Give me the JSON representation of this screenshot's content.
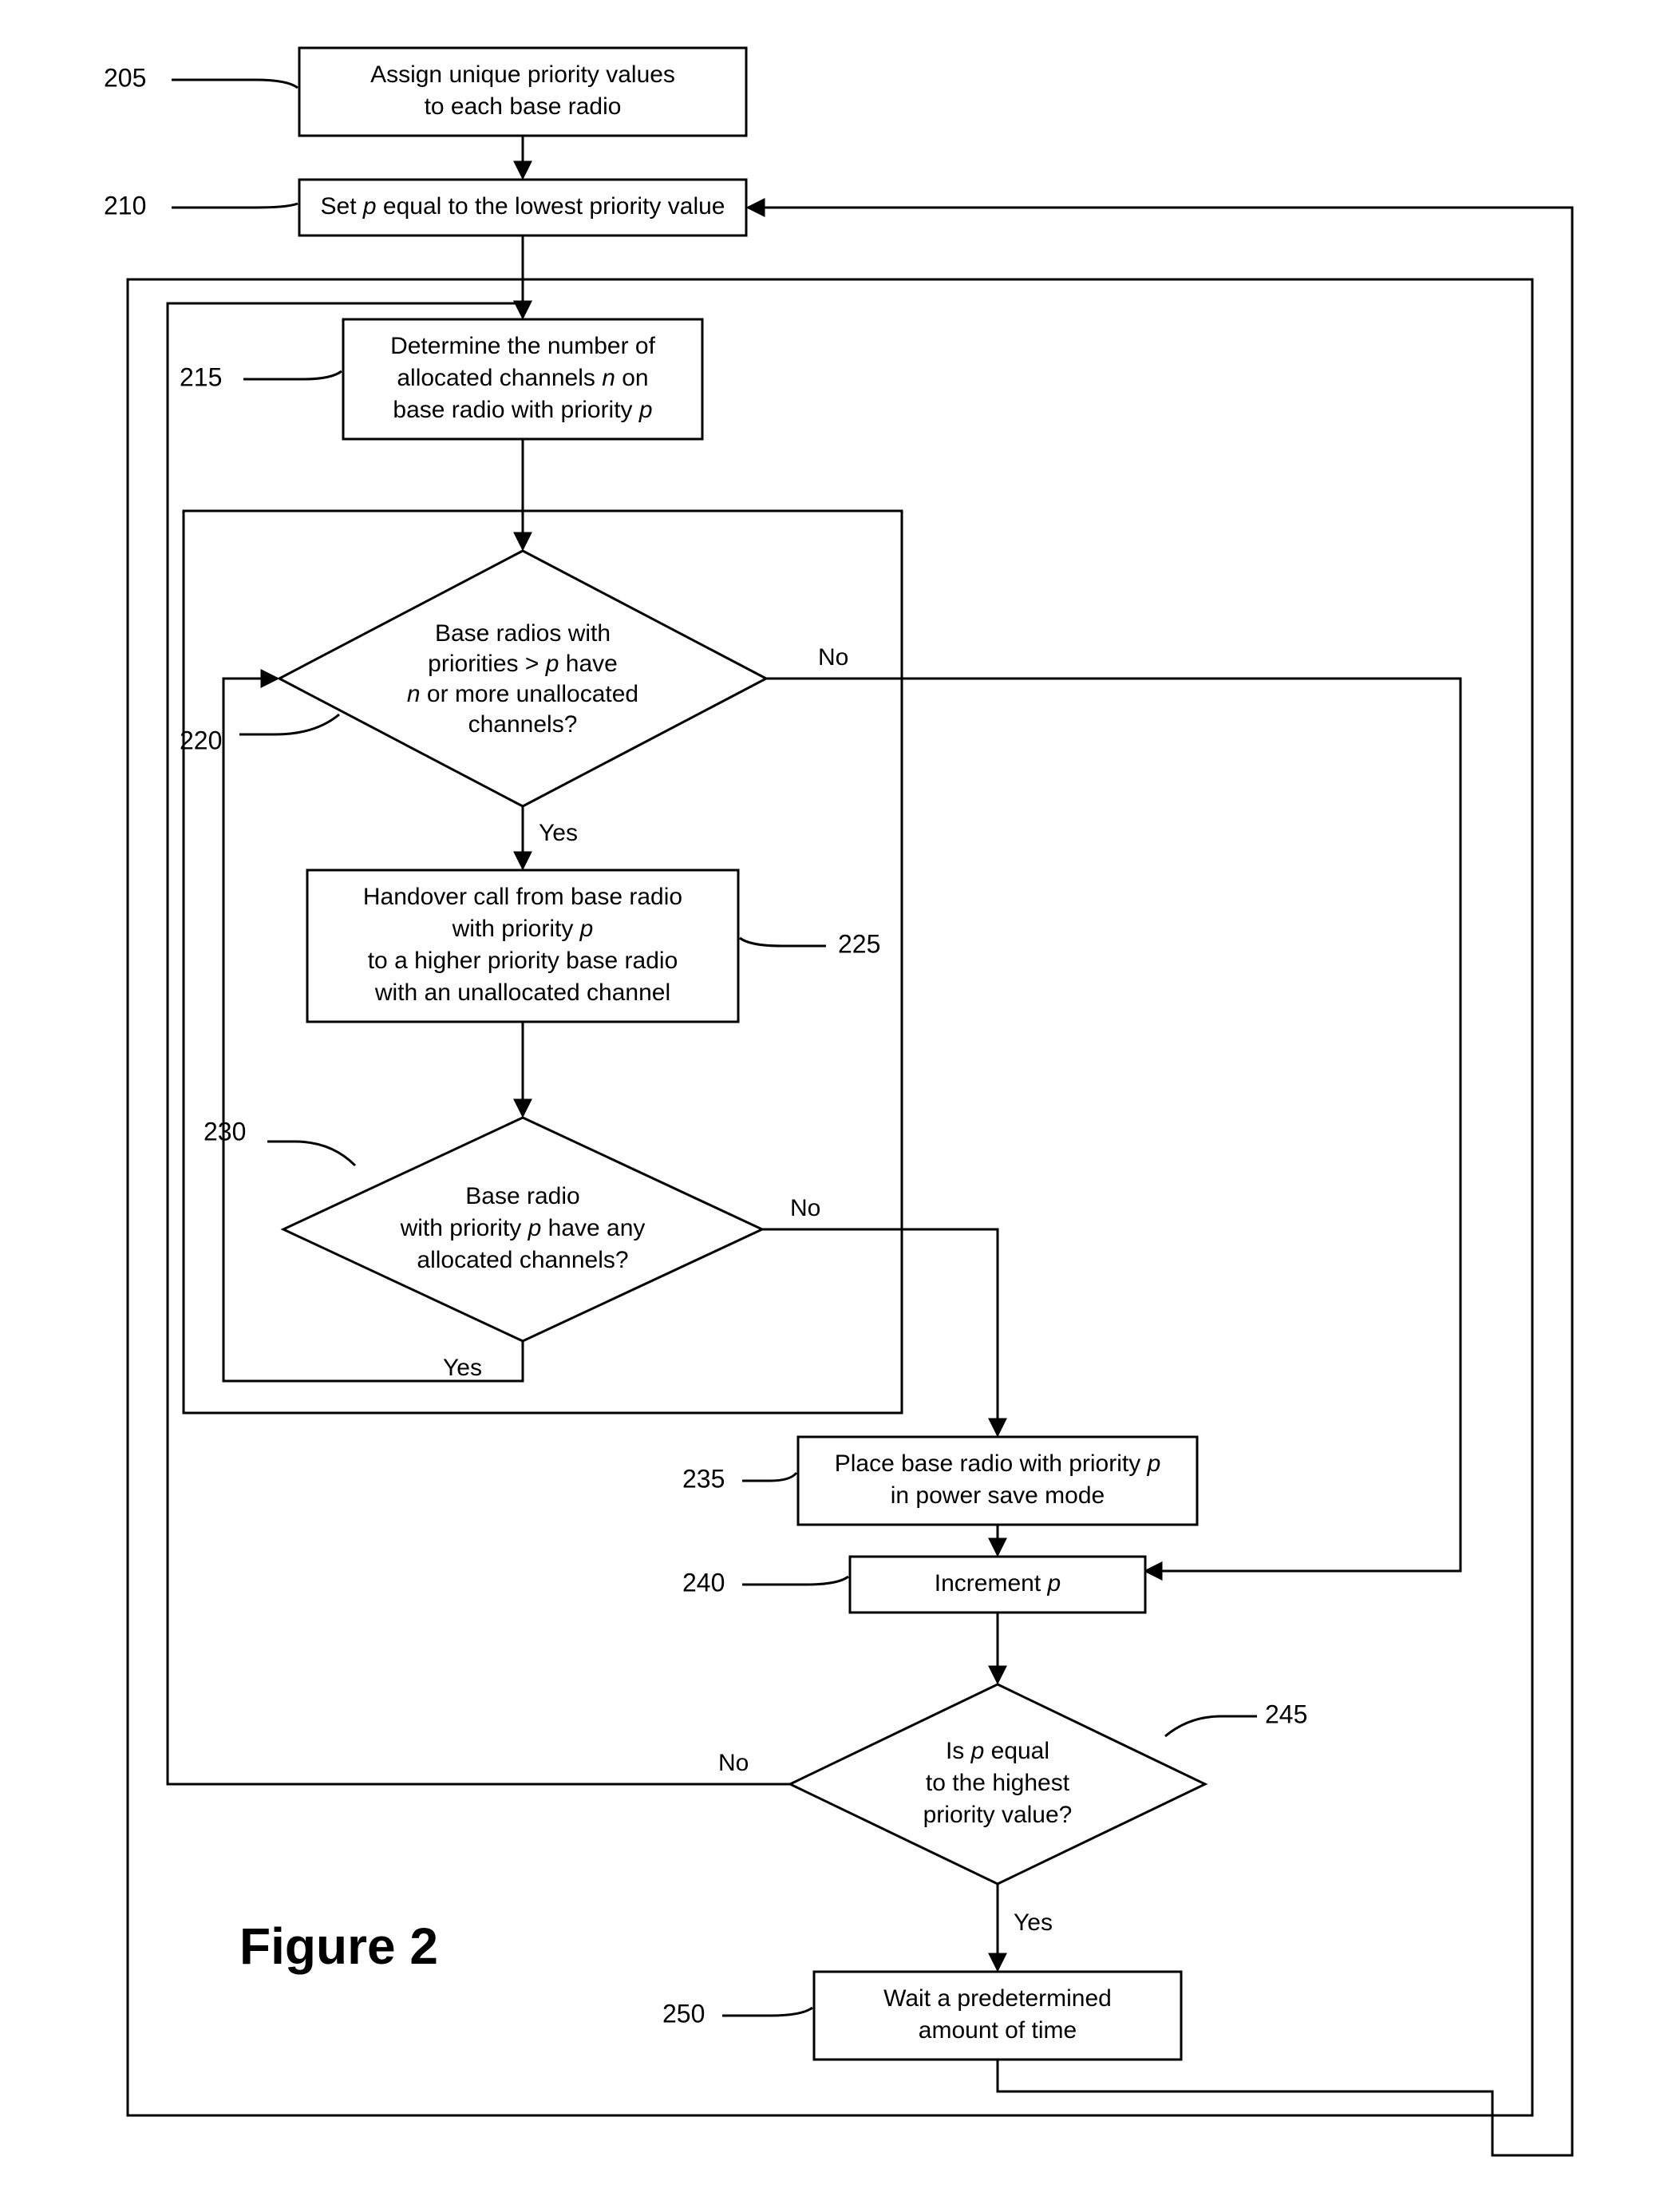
{
  "figure_caption": "Figure 2",
  "colors": {
    "stroke": "#000000",
    "fill": "#ffffff"
  },
  "font": {
    "node_size": 30,
    "label_size": 30,
    "ref_size": 32,
    "caption_size": 64
  },
  "nodes": {
    "n205": {
      "ref": "205",
      "type": "process",
      "lines": [
        "Assign unique priority values",
        "to each base radio"
      ]
    },
    "n210": {
      "ref": "210",
      "type": "process",
      "lines_runs": [
        [
          {
            "t": "Set "
          },
          {
            "t": "p",
            "i": true
          },
          {
            "t": " equal to the lowest priority value"
          }
        ]
      ]
    },
    "n215": {
      "ref": "215",
      "type": "process",
      "lines_runs": [
        [
          {
            "t": "Determine the number of"
          }
        ],
        [
          {
            "t": "allocated channels "
          },
          {
            "t": "n",
            "i": true
          },
          {
            "t": " on"
          }
        ],
        [
          {
            "t": "base radio with priority "
          },
          {
            "t": "p",
            "i": true
          }
        ]
      ]
    },
    "n220": {
      "ref": "220",
      "type": "decision",
      "lines_runs": [
        [
          {
            "t": "Base radios with"
          }
        ],
        [
          {
            "t": "priorities > "
          },
          {
            "t": "p",
            "i": true
          },
          {
            "t": " have"
          }
        ],
        [
          {
            "t": "n",
            "i": true
          },
          {
            "t": " or more unallocated"
          }
        ],
        [
          {
            "t": "channels?"
          }
        ]
      ]
    },
    "n225": {
      "ref": "225",
      "type": "process",
      "lines_runs": [
        [
          {
            "t": "Handover call from base radio"
          }
        ],
        [
          {
            "t": "with priority "
          },
          {
            "t": "p",
            "i": true
          }
        ],
        [
          {
            "t": "to a higher priority base radio"
          }
        ],
        [
          {
            "t": "with an unallocated channel"
          }
        ]
      ]
    },
    "n230": {
      "ref": "230",
      "type": "decision",
      "lines_runs": [
        [
          {
            "t": "Base radio"
          }
        ],
        [
          {
            "t": "with priority "
          },
          {
            "t": "p",
            "i": true
          },
          {
            "t": " have any"
          }
        ],
        [
          {
            "t": "allocated channels?"
          }
        ]
      ]
    },
    "n235": {
      "ref": "235",
      "type": "process",
      "lines_runs": [
        [
          {
            "t": "Place base radio with priority "
          },
          {
            "t": "p",
            "i": true
          }
        ],
        [
          {
            "t": "in power save mode"
          }
        ]
      ]
    },
    "n240": {
      "ref": "240",
      "type": "process",
      "lines_runs": [
        [
          {
            "t": "Increment "
          },
          {
            "t": "p",
            "i": true
          }
        ]
      ]
    },
    "n245": {
      "ref": "245",
      "type": "decision",
      "lines_runs": [
        [
          {
            "t": "Is "
          },
          {
            "t": "p",
            "i": true
          },
          {
            "t": " equal"
          }
        ],
        [
          {
            "t": "to the highest"
          }
        ],
        [
          {
            "t": "priority value?"
          }
        ]
      ]
    },
    "n250": {
      "ref": "250",
      "type": "process",
      "lines": [
        "Wait a predetermined",
        "amount of time"
      ]
    }
  },
  "edge_labels": {
    "yes": "Yes",
    "no": "No"
  }
}
